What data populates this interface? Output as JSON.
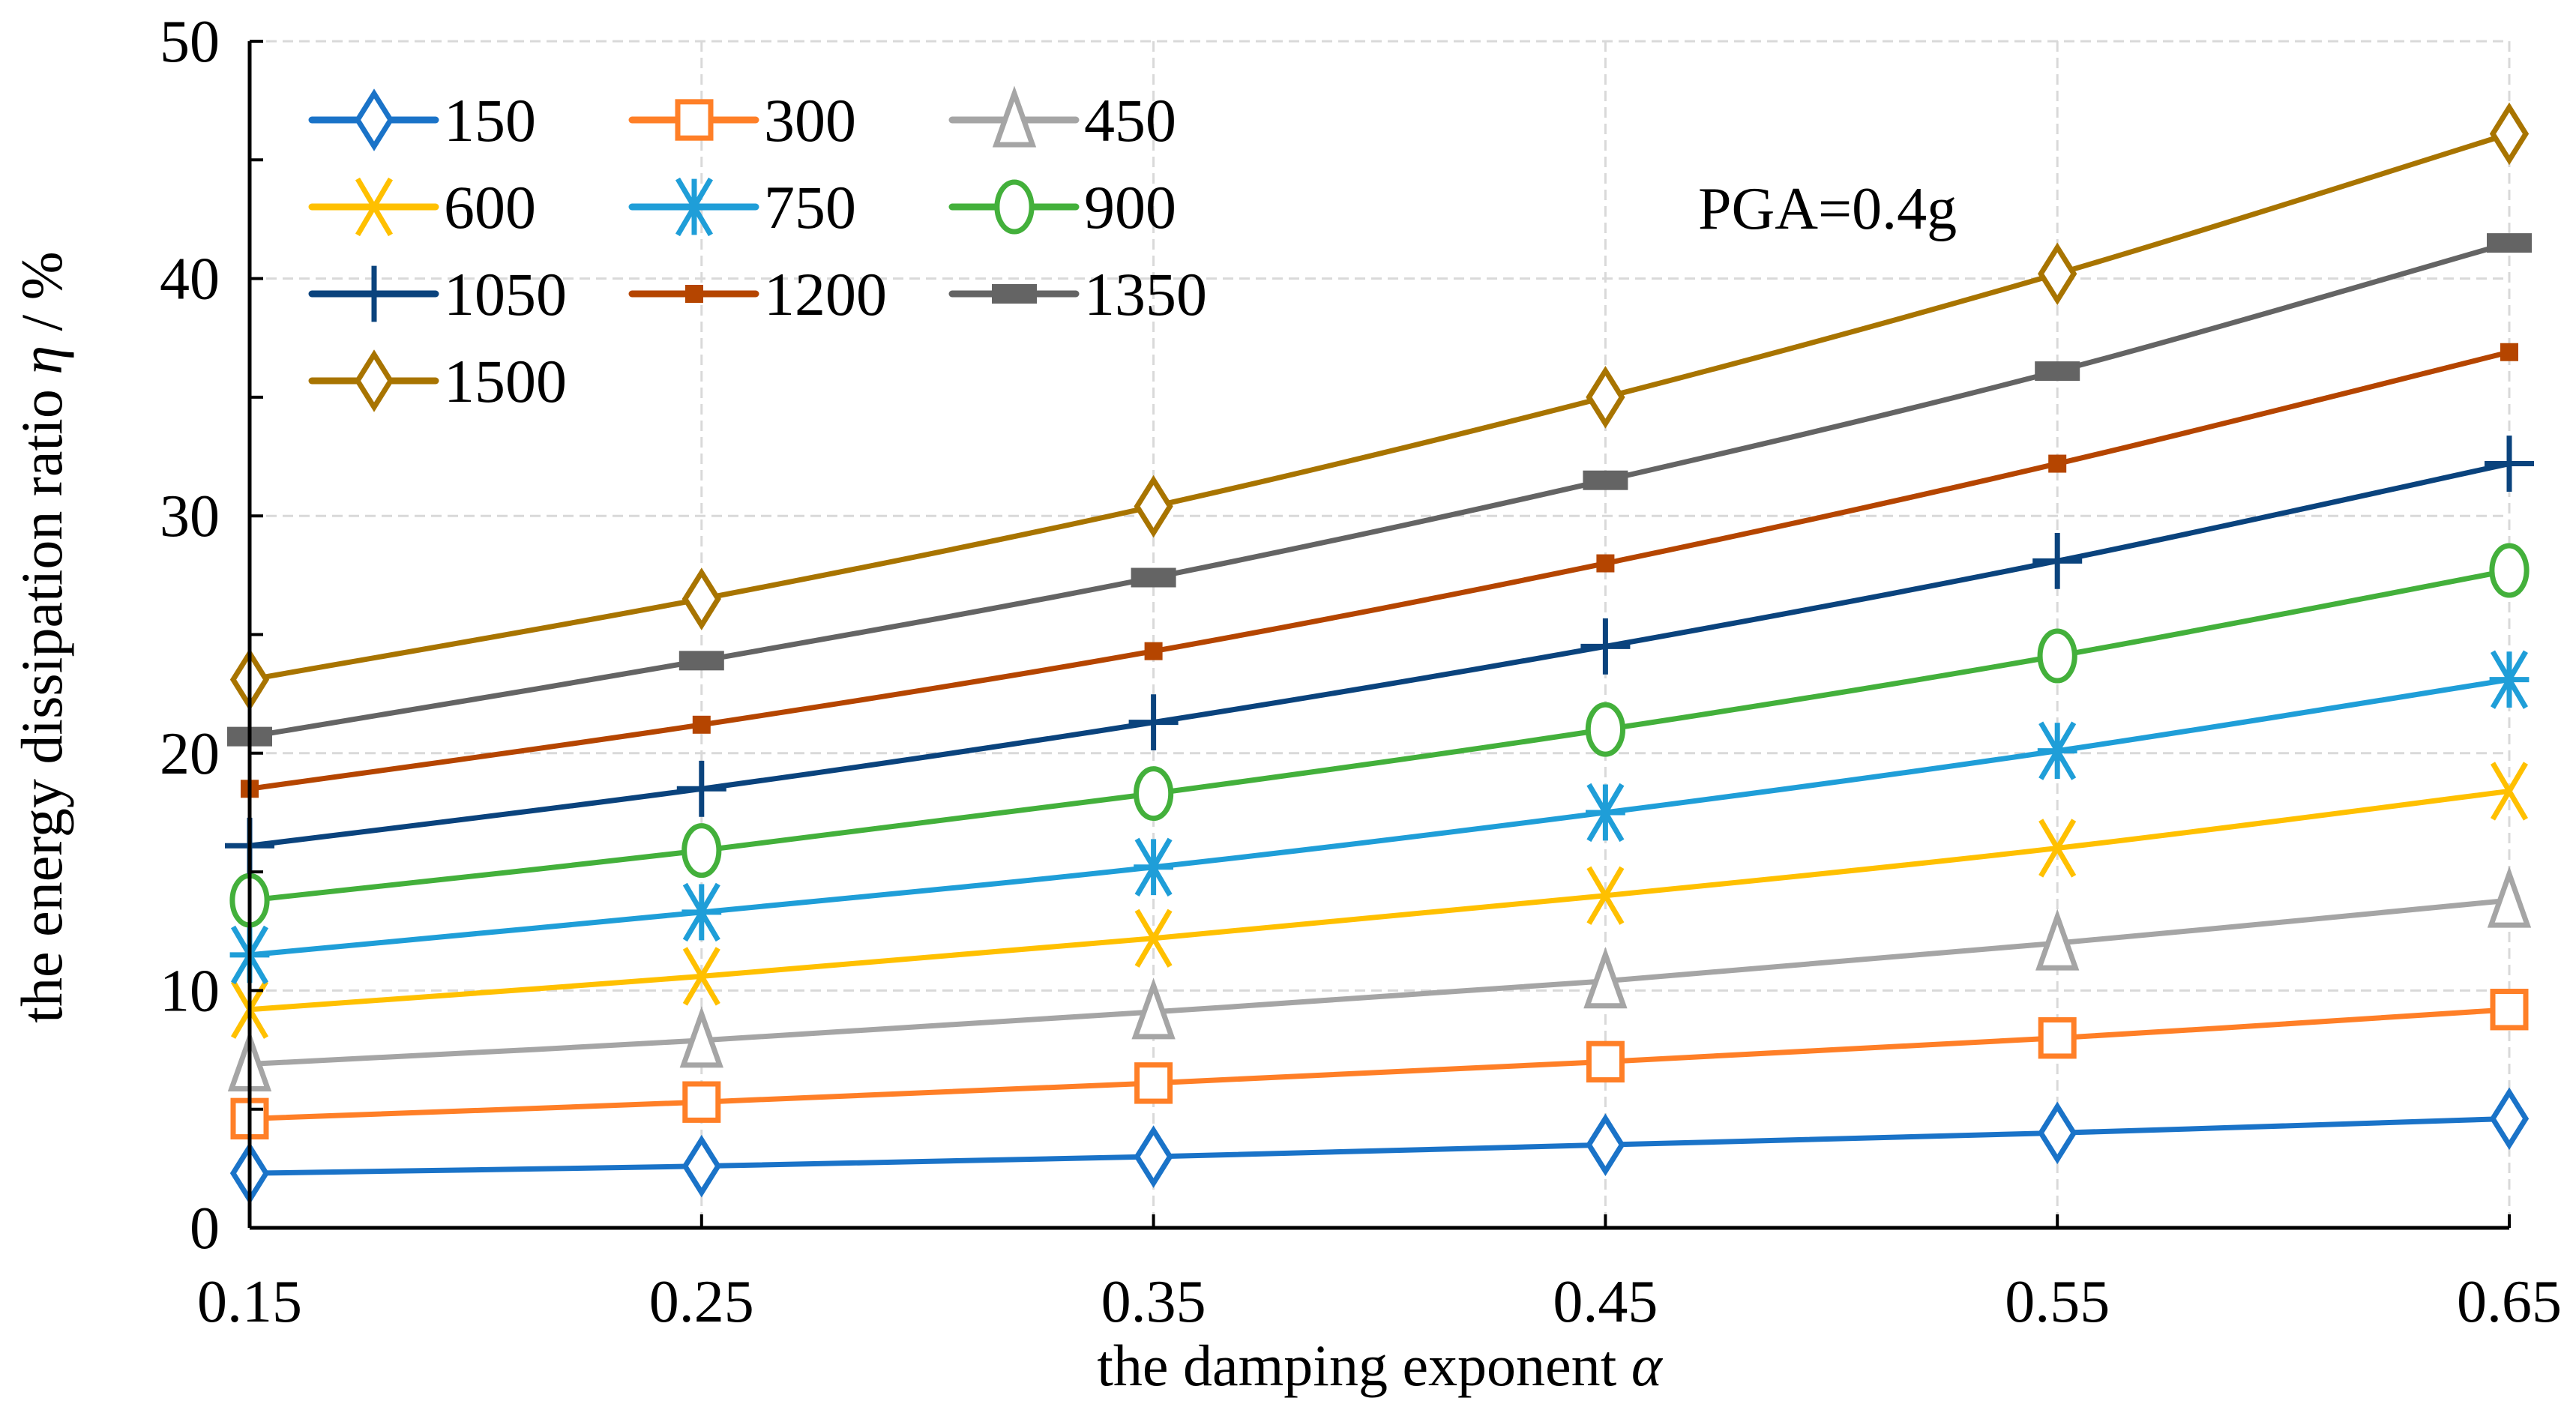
{
  "chart_data": {
    "type": "line",
    "title": "",
    "annotation": "PGA=0.4g",
    "xlabel_prefix": "the damping exponent ",
    "xlabel_symbol": "α",
    "ylabel_prefix": "the energy dissipation ratio ",
    "ylabel_symbol": "η",
    "ylabel_suffix": " / %",
    "x": [
      0.15,
      0.25,
      0.35,
      0.45,
      0.55,
      0.65
    ],
    "x_tick_labels": [
      "0.15",
      "0.25",
      "0.35",
      "0.45",
      "0.55",
      "0.65"
    ],
    "y_ticks": [
      0,
      10,
      20,
      30,
      40,
      50
    ],
    "y_tick_labels": [
      "0",
      "10",
      "20",
      "30",
      "40",
      "50"
    ],
    "xlim": [
      0.15,
      0.65
    ],
    "ylim": [
      0,
      50
    ],
    "grid": true,
    "legend_placement": "top-left",
    "series": [
      {
        "name": "150",
        "color": "#1a73c8",
        "marker": "diamond",
        "values": [
          2.3,
          2.6,
          3.0,
          3.5,
          4.0,
          4.6
        ]
      },
      {
        "name": "300",
        "color": "#ff7f27",
        "marker": "square",
        "values": [
          4.6,
          5.3,
          6.1,
          7.0,
          8.0,
          9.2
        ]
      },
      {
        "name": "450",
        "color": "#a5a5a5",
        "marker": "triangle",
        "values": [
          6.9,
          7.9,
          9.1,
          10.4,
          12.0,
          13.8
        ]
      },
      {
        "name": "600",
        "color": "#ffc000",
        "marker": "x",
        "values": [
          9.2,
          10.6,
          12.2,
          14.0,
          16.0,
          18.4
        ]
      },
      {
        "name": "750",
        "color": "#1f9ed8",
        "marker": "asterisk",
        "values": [
          11.5,
          13.3,
          15.2,
          17.5,
          20.1,
          23.1
        ]
      },
      {
        "name": "900",
        "color": "#43b03b",
        "marker": "circle",
        "values": [
          13.8,
          15.9,
          18.3,
          21.0,
          24.1,
          27.7
        ]
      },
      {
        "name": "1050",
        "color": "#0a437d",
        "marker": "plus",
        "values": [
          16.1,
          18.5,
          21.3,
          24.5,
          28.1,
          32.2
        ]
      },
      {
        "name": "1200",
        "color": "#b54500",
        "marker": "smallrect",
        "values": [
          18.5,
          21.2,
          24.3,
          28.0,
          32.2,
          36.9
        ]
      },
      {
        "name": "1350",
        "color": "#646464",
        "marker": "widerect",
        "values": [
          20.7,
          23.9,
          27.4,
          31.5,
          36.1,
          41.5
        ]
      },
      {
        "name": "1500",
        "color": "#a87400",
        "marker": "diamond",
        "values": [
          23.1,
          26.5,
          30.4,
          35.0,
          40.2,
          46.1
        ]
      }
    ]
  }
}
